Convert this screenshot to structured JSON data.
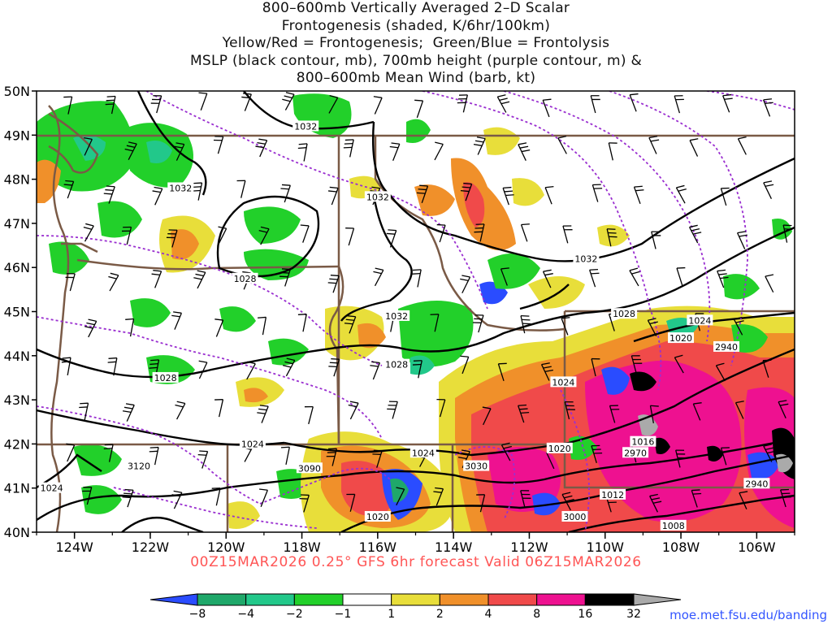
{
  "title_lines": [
    "800–600mb Vertically Averaged 2–D Scalar",
    "Frontogenesis (shaded, K/6hr/100km)",
    "Yellow/Red = Frontogenesis;  Green/Blue = Frontolysis",
    "MSLP (black contour, mb), 700mb height (purple contour, m) &",
    "800–600mb Mean Wind (barb, kt)"
  ],
  "map": {
    "lon_range": [
      -125,
      -105
    ],
    "lat_range": [
      40,
      50
    ],
    "lat_labels": [
      "50N",
      "49N",
      "48N",
      "47N",
      "46N",
      "45N",
      "44N",
      "43N",
      "42N",
      "41N",
      "40N"
    ],
    "lon_labels": [
      "124W",
      "122W",
      "120W",
      "118W",
      "116W",
      "114W",
      "112W",
      "110W",
      "108W",
      "106W"
    ],
    "colors": {
      "frame": "#000000",
      "border": "#7a5a46",
      "mslp_contour": "#000000",
      "height_contour": "#9a2fd0"
    },
    "mslp_labels": [
      {
        "text": "1032",
        "lon": -117.9,
        "lat": 49.2
      },
      {
        "text": "1032",
        "lon": -121.2,
        "lat": 47.8
      },
      {
        "text": "1032",
        "lon": -116.0,
        "lat": 47.6
      },
      {
        "text": "1032",
        "lon": -110.5,
        "lat": 46.2
      },
      {
        "text": "1028",
        "lon": -119.5,
        "lat": 45.75
      },
      {
        "text": "1032",
        "lon": -115.5,
        "lat": 44.9
      },
      {
        "text": "1028",
        "lon": -115.5,
        "lat": 43.8
      },
      {
        "text": "1028",
        "lon": -121.6,
        "lat": 43.5
      },
      {
        "text": "1028",
        "lon": -109.5,
        "lat": 44.95
      },
      {
        "text": "1024",
        "lon": -111.1,
        "lat": 43.4
      },
      {
        "text": "1024",
        "lon": -107.5,
        "lat": 44.8
      },
      {
        "text": "1020",
        "lon": -108.0,
        "lat": 44.4
      },
      {
        "text": "1024",
        "lon": -119.3,
        "lat": 42.0
      },
      {
        "text": "1024",
        "lon": -114.8,
        "lat": 41.8
      },
      {
        "text": "1020",
        "lon": -111.2,
        "lat": 41.9
      },
      {
        "text": "1016",
        "lon": -109.0,
        "lat": 42.05
      },
      {
        "text": "1012",
        "lon": -109.8,
        "lat": 40.85
      },
      {
        "text": "1008",
        "lon": -108.2,
        "lat": 40.15
      },
      {
        "text": "1024",
        "lon": -124.6,
        "lat": 41.0
      },
      {
        "text": "1020",
        "lon": -116.0,
        "lat": 40.35
      }
    ],
    "height_labels": [
      {
        "text": "2940",
        "lon": -106.8,
        "lat": 44.2
      },
      {
        "text": "2970",
        "lon": -109.2,
        "lat": 41.8
      },
      {
        "text": "2940",
        "lon": -106.0,
        "lat": 41.1
      },
      {
        "text": "3120",
        "lon": -122.3,
        "lat": 41.5
      },
      {
        "text": "3090",
        "lon": -117.8,
        "lat": 41.45
      },
      {
        "text": "3030",
        "lon": -113.4,
        "lat": 41.5
      },
      {
        "text": "3000",
        "lon": -110.8,
        "lat": 40.35
      }
    ]
  },
  "footer": "00Z15MAR2026 0.25° GFS 6hr forecast Valid 06Z15MAR2026",
  "colorbar": {
    "colors": [
      "#2a4cff",
      "#1fa86a",
      "#22c88a",
      "#22d02a",
      "#ffffff",
      "#e8de3a",
      "#f0902a",
      "#f04a4a",
      "#ee1190",
      "#000000",
      "#aaaaaa"
    ],
    "labels": [
      "−8",
      "−4",
      "−2",
      "−1",
      "1",
      "2",
      "4",
      "8",
      "16",
      "32"
    ]
  },
  "credit": "moe.met.fsu.edu/banding"
}
